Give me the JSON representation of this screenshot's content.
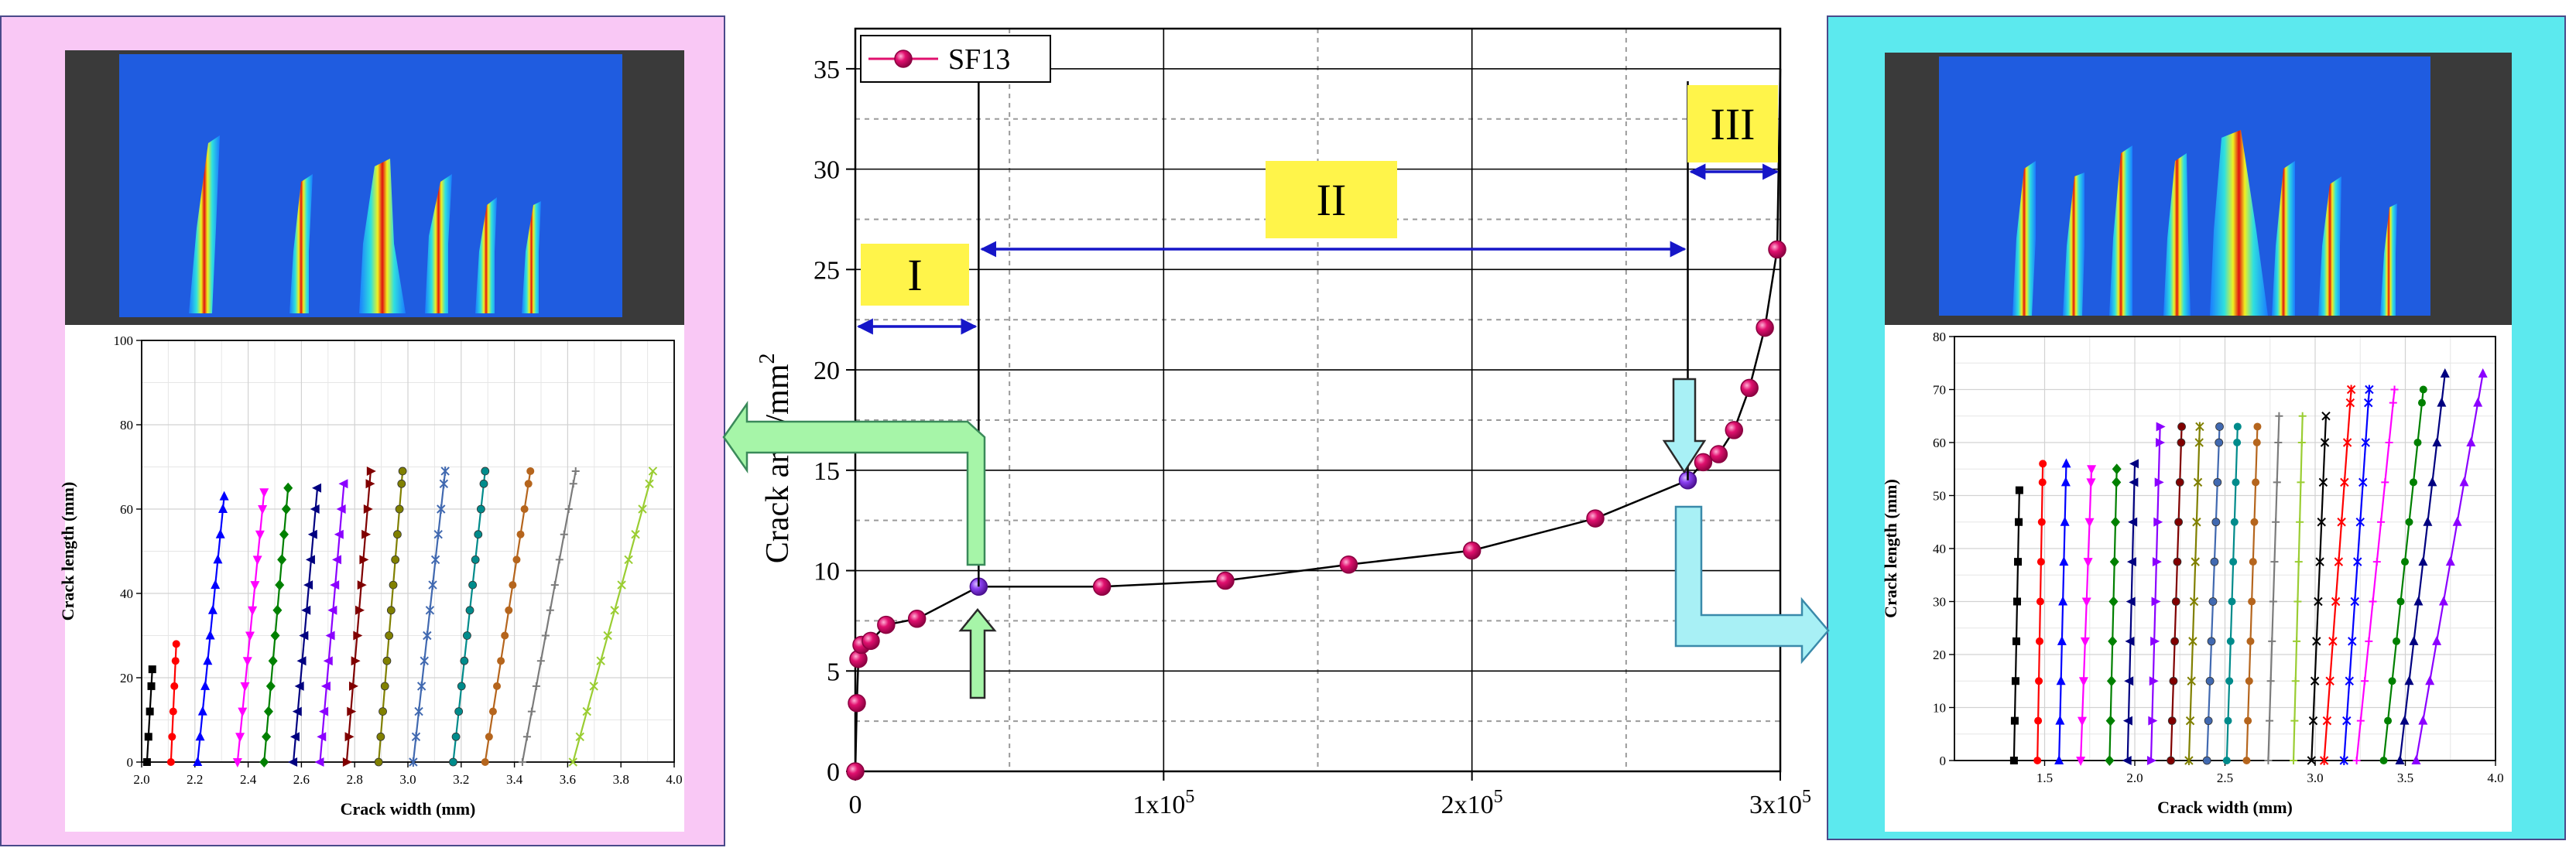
{
  "colors": {
    "left_panel": "#f9c8f5",
    "right_panel": "#5ce9ee",
    "main_series": "#e0106e",
    "highlight_point": "#8a3ff0",
    "stage_label_bg": "#fff44a",
    "stage_arrow": "#1616c8",
    "green_arrow": "#a6f5a8",
    "cyan_arrow": "#a8f0f5",
    "crack_colors": [
      "#000000",
      "#ff0000",
      "#0000ff",
      "#ff00ff",
      "#008000",
      "#000080",
      "#8b00ff",
      "#800000",
      "#808000",
      "#4169b0",
      "#008b8b",
      "#b5651d",
      "#7b7b7b",
      "#9acd32"
    ]
  },
  "stage_labels": [
    "I",
    "II",
    "III"
  ],
  "dic_images": [
    "contour-map-early",
    "contour-map-late"
  ],
  "chart_data": [
    {
      "id": "main",
      "type": "line",
      "ylabel": "Crack area/mm²",
      "ylabel_text": "Crack area/mm",
      "ylabel_sup": "2",
      "xlim": [
        0,
        300000
      ],
      "ylim": [
        0,
        37
      ],
      "xticks": [
        0,
        100000,
        200000,
        300000
      ],
      "xtick_labels": [
        {
          "m": "0",
          "e": ""
        },
        {
          "m": "1x10",
          "e": "5"
        },
        {
          "m": "2x10",
          "e": "5"
        },
        {
          "m": "3x10",
          "e": "5"
        }
      ],
      "yticks": [
        0,
        5,
        10,
        15,
        20,
        25,
        30,
        35
      ],
      "ytick_labels": [
        "0",
        "5",
        "10",
        "15",
        "20",
        "25",
        "30",
        "35"
      ],
      "grid": "dashed",
      "legend": "top-left",
      "series": [
        {
          "name": "SF13",
          "x": [
            0,
            500,
            1000,
            2000,
            5000,
            10000,
            20000,
            40000,
            80000,
            120000,
            160000,
            200000,
            240000,
            270000,
            275000,
            280000,
            285000,
            290000,
            295000,
            299000
          ],
          "y": [
            0,
            3.4,
            5.6,
            6.3,
            6.5,
            7.3,
            7.6,
            9.2,
            9.2,
            9.5,
            10.3,
            11.0,
            12.6,
            14.5,
            15.4,
            15.8,
            17.0,
            19.1,
            22.1,
            26.0
          ]
        }
      ],
      "highlight_points": [
        {
          "x": 40000,
          "y": 9.2
        },
        {
          "x": 270000,
          "y": 14.5
        }
      ],
      "stage_boundaries": [
        0,
        40000,
        270000,
        300000
      ]
    },
    {
      "id": "left",
      "type": "line",
      "xlabel": "Crack width (mm)",
      "ylabel": "Crack length (mm)",
      "xlim": [
        2.0,
        4.0
      ],
      "ylim": [
        0,
        100
      ],
      "xticks": [
        2.0,
        2.2,
        2.4,
        2.6,
        2.8,
        3.0,
        3.2,
        3.4,
        3.6,
        3.8,
        4.0
      ],
      "xtick_labels": [
        "2.0",
        "2.2",
        "2.4",
        "2.6",
        "2.8",
        "3.0",
        "3.2",
        "3.4",
        "3.6",
        "3.8",
        "4.0"
      ],
      "yticks": [
        0,
        20,
        40,
        60,
        80,
        100
      ],
      "ytick_labels": [
        "0",
        "20",
        "40",
        "60",
        "80",
        "100"
      ],
      "grid": "on",
      "series": [
        {
          "x0": 2.02,
          "x1": 2.04,
          "top": 22,
          "marker": "square"
        },
        {
          "x0": 2.11,
          "x1": 2.13,
          "top": 28,
          "marker": "circle"
        },
        {
          "x0": 2.21,
          "x1": 2.31,
          "top": 63,
          "marker": "triangle"
        },
        {
          "x0": 2.36,
          "x1": 2.46,
          "top": 64,
          "marker": "triangle-down"
        },
        {
          "x0": 2.46,
          "x1": 2.55,
          "top": 65,
          "marker": "diamond"
        },
        {
          "x0": 2.57,
          "x1": 2.66,
          "top": 65,
          "marker": "triangle-left"
        },
        {
          "x0": 2.67,
          "x1": 2.76,
          "top": 66,
          "marker": "triangle-left"
        },
        {
          "x0": 2.77,
          "x1": 2.86,
          "top": 69,
          "marker": "triangle-right"
        },
        {
          "x0": 2.89,
          "x1": 2.98,
          "top": 69,
          "marker": "hexagon"
        },
        {
          "x0": 3.02,
          "x1": 3.14,
          "top": 69,
          "marker": "star"
        },
        {
          "x0": 3.17,
          "x1": 3.29,
          "top": 69,
          "marker": "pentagon"
        },
        {
          "x0": 3.29,
          "x1": 3.46,
          "top": 69,
          "marker": "circle"
        },
        {
          "x0": 3.43,
          "x1": 3.63,
          "top": 69,
          "marker": "plus"
        },
        {
          "x0": 3.62,
          "x1": 3.92,
          "top": 69,
          "marker": "cross"
        }
      ]
    },
    {
      "id": "right",
      "type": "line",
      "xlabel": "Crack width (mm)",
      "ylabel": "Crack length (mm)",
      "xlim": [
        1.0,
        4.0
      ],
      "ylim": [
        0,
        80
      ],
      "xticks": [
        1.5,
        2.0,
        2.5,
        3.0,
        3.5,
        4.0
      ],
      "xtick_labels": [
        "1.5",
        "2.0",
        "2.5",
        "3.0",
        "3.5",
        "4.0"
      ],
      "yticks": [
        0,
        10,
        20,
        30,
        40,
        50,
        60,
        70,
        80
      ],
      "ytick_labels": [
        "0",
        "10",
        "20",
        "30",
        "40",
        "50",
        "60",
        "70",
        "80"
      ],
      "grid": "on",
      "series": [
        {
          "x0": 1.33,
          "x1": 1.36,
          "top": 51,
          "marker": "square"
        },
        {
          "x0": 1.46,
          "x1": 1.49,
          "top": 56,
          "marker": "circle"
        },
        {
          "x0": 1.58,
          "x1": 1.62,
          "top": 56,
          "marker": "triangle"
        },
        {
          "x0": 1.7,
          "x1": 1.76,
          "top": 55,
          "marker": "triangle-down"
        },
        {
          "x0": 1.86,
          "x1": 1.9,
          "top": 55,
          "marker": "diamond"
        },
        {
          "x0": 1.96,
          "x1": 2.0,
          "top": 56,
          "marker": "triangle-left"
        },
        {
          "x0": 2.09,
          "x1": 2.14,
          "top": 63,
          "marker": "triangle-right"
        },
        {
          "x0": 2.2,
          "x1": 2.26,
          "top": 63,
          "marker": "hexagon"
        },
        {
          "x0": 2.3,
          "x1": 2.36,
          "top": 63,
          "marker": "star"
        },
        {
          "x0": 2.4,
          "x1": 2.47,
          "top": 63,
          "marker": "pentagon"
        },
        {
          "x0": 2.51,
          "x1": 2.57,
          "top": 63,
          "marker": "circle"
        },
        {
          "x0": 2.62,
          "x1": 2.68,
          "top": 63,
          "marker": "circle"
        },
        {
          "x0": 2.74,
          "x1": 2.8,
          "top": 65,
          "marker": "plus"
        },
        {
          "x0": 2.88,
          "x1": 2.93,
          "top": 65,
          "marker": "plus"
        },
        {
          "x0": 2.98,
          "x1": 3.06,
          "top": 65,
          "marker": "cross"
        },
        {
          "x0": 3.05,
          "x1": 3.2,
          "top": 70,
          "marker": "star"
        },
        {
          "x0": 3.16,
          "x1": 3.3,
          "top": 70,
          "marker": "star"
        },
        {
          "x0": 3.23,
          "x1": 3.44,
          "top": 70,
          "marker": "plus"
        },
        {
          "x0": 3.38,
          "x1": 3.6,
          "top": 70,
          "marker": "circle"
        },
        {
          "x0": 3.47,
          "x1": 3.72,
          "top": 73,
          "marker": "triangle"
        },
        {
          "x0": 3.56,
          "x1": 3.93,
          "top": 73,
          "marker": "triangle"
        }
      ]
    }
  ]
}
